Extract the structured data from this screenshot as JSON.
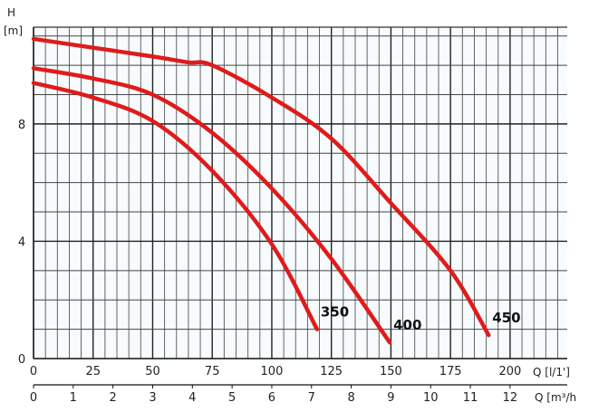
{
  "chart_data": {
    "type": "line",
    "title": "",
    "ylabel": "H",
    "ylabel_unit": "[m]",
    "xlabel": "Q [l/1']",
    "xlabel2": "Q [m³/h",
    "xlim": [
      0,
      224
    ],
    "ylim": [
      0,
      11.3
    ],
    "xticks": [
      0,
      25,
      50,
      75,
      100,
      125,
      150,
      175,
      200
    ],
    "xticks2": [
      0,
      1,
      2,
      3,
      4,
      5,
      6,
      7,
      8,
      9,
      10,
      11,
      12
    ],
    "yticks": [
      0,
      4,
      8
    ],
    "grid": true,
    "line_color": "#e01b1b",
    "series": [
      {
        "name": "350",
        "x": [
          0,
          25,
          50,
          75,
          100,
          119
        ],
        "y": [
          9.4,
          8.9,
          8.1,
          6.4,
          3.9,
          1.0
        ]
      },
      {
        "name": "400",
        "x": [
          0,
          25,
          50,
          75,
          100,
          125,
          149.5
        ],
        "y": [
          9.9,
          9.55,
          9.0,
          7.7,
          5.8,
          3.4,
          0.55
        ]
      },
      {
        "name": "450",
        "x": [
          0,
          25,
          50,
          65,
          75,
          100,
          125,
          150,
          175,
          191
        ],
        "y": [
          10.9,
          10.6,
          10.3,
          10.1,
          10.0,
          8.9,
          7.5,
          5.3,
          3.0,
          0.8
        ]
      }
    ]
  }
}
